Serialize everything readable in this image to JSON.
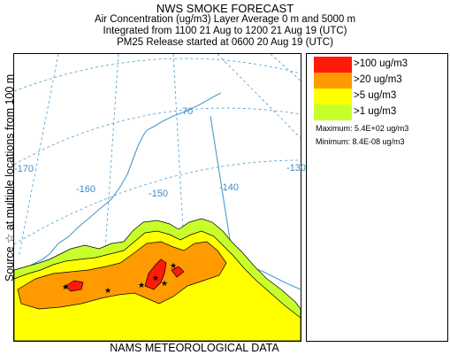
{
  "header": {
    "title": "NWS SMOKE FORECAST",
    "line2": "Air Concentration (ug/m3) Layer Average    0 m and  5000 m",
    "line3": "Integrated from 1100 21 Aug to 1200 21 Aug 19 (UTC)",
    "line4": "PM25 Release started at 0600 20 Aug 19 (UTC)"
  },
  "side_label": "Source ☆ at multiple locations   from   100 m",
  "footer": "NAMS METEOROLOGICAL DATA",
  "map": {
    "latitude_labels": [
      "70"
    ],
    "longitude_labels": [
      "-170",
      "-160",
      "-150",
      "-140",
      "-130"
    ],
    "colors": {
      "gridline": "#4c9ccc",
      "coastline": "#4c9ccc",
      "contour_line": "#000000",
      "source_star": "#000000"
    }
  },
  "legend": {
    "items": [
      {
        "label": ">100 ug/m3",
        "color": "#ff1a0a"
      },
      {
        "label": ">20 ug/m3",
        "color": "#ff9a00"
      },
      {
        "label": ">5 ug/m3",
        "color": "#ffff00"
      },
      {
        "label": ">1 ug/m3",
        "color": "#c8ff2a"
      }
    ],
    "maximum": "Maximum: 5.4E+02 ug/m3",
    "minimum": "Minimum: 8.4E-08 ug/m3"
  }
}
